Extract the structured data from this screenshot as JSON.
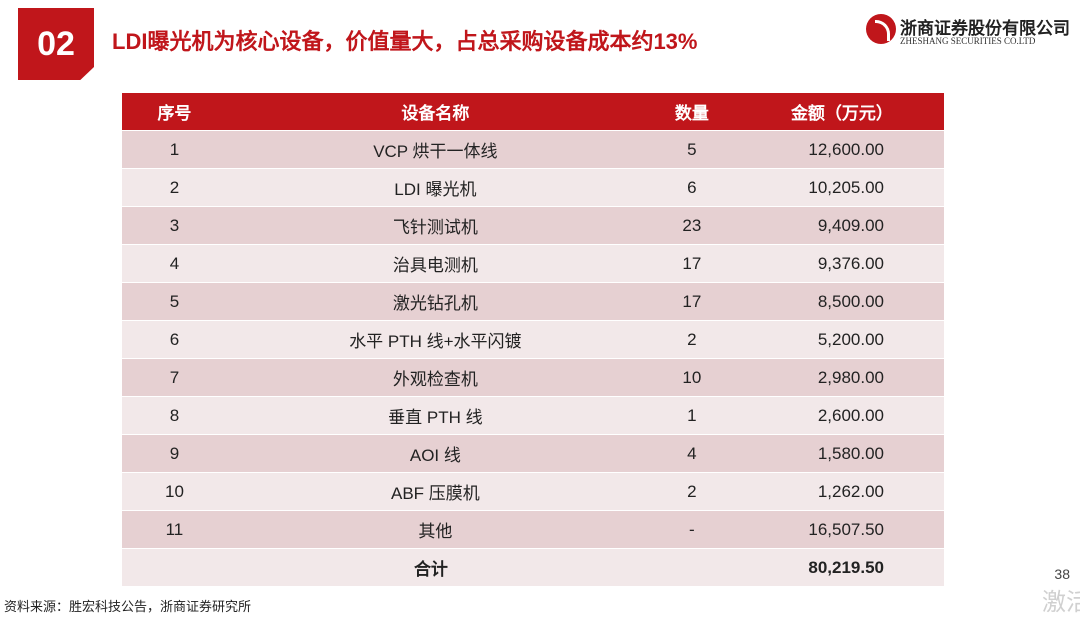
{
  "header": {
    "section_number": "02",
    "title": "LDI曝光机为核心设备，价值量大，占总采购设备成本约13%",
    "logo_cn": "浙商证券股份有限公司",
    "logo_en": "ZHESHANG SECURITIES CO.LTD"
  },
  "table": {
    "columns": [
      "序号",
      "设备名称",
      "数量",
      "金额（万元）"
    ],
    "rows": [
      {
        "idx": "1",
        "name": "VCP 烘干一体线",
        "qty": "5",
        "amount": "12,600.00"
      },
      {
        "idx": "2",
        "name": "LDI 曝光机",
        "qty": "6",
        "amount": "10,205.00"
      },
      {
        "idx": "3",
        "name": "飞针测试机",
        "qty": "23",
        "amount": "9,409.00"
      },
      {
        "idx": "4",
        "name": "治具电测机",
        "qty": "17",
        "amount": "9,376.00"
      },
      {
        "idx": "5",
        "name": "激光钻孔机",
        "qty": "17",
        "amount": "8,500.00"
      },
      {
        "idx": "6",
        "name": "水平 PTH 线+水平闪镀",
        "qty": "2",
        "amount": "5,200.00"
      },
      {
        "idx": "7",
        "name": "外观检查机",
        "qty": "10",
        "amount": "2,980.00"
      },
      {
        "idx": "8",
        "name": "垂直 PTH 线",
        "qty": "1",
        "amount": "2,600.00"
      },
      {
        "idx": "9",
        "name": "AOI 线",
        "qty": "4",
        "amount": "1,580.00"
      },
      {
        "idx": "10",
        "name": "ABF 压膜机",
        "qty": "2",
        "amount": "1,262.00"
      },
      {
        "idx": "11",
        "name": "其他",
        "qty": "-",
        "amount": "16,507.50"
      }
    ],
    "total": {
      "label": "合计",
      "amount": "80,219.50"
    }
  },
  "footer": {
    "source": "资料来源：胜宏科技公告，浙商证券研究所",
    "page": "38",
    "watermark": "激活"
  },
  "colors": {
    "brand": "#c0161b",
    "row_dark": "#e6d0d2",
    "row_light": "#f2e8e9"
  }
}
